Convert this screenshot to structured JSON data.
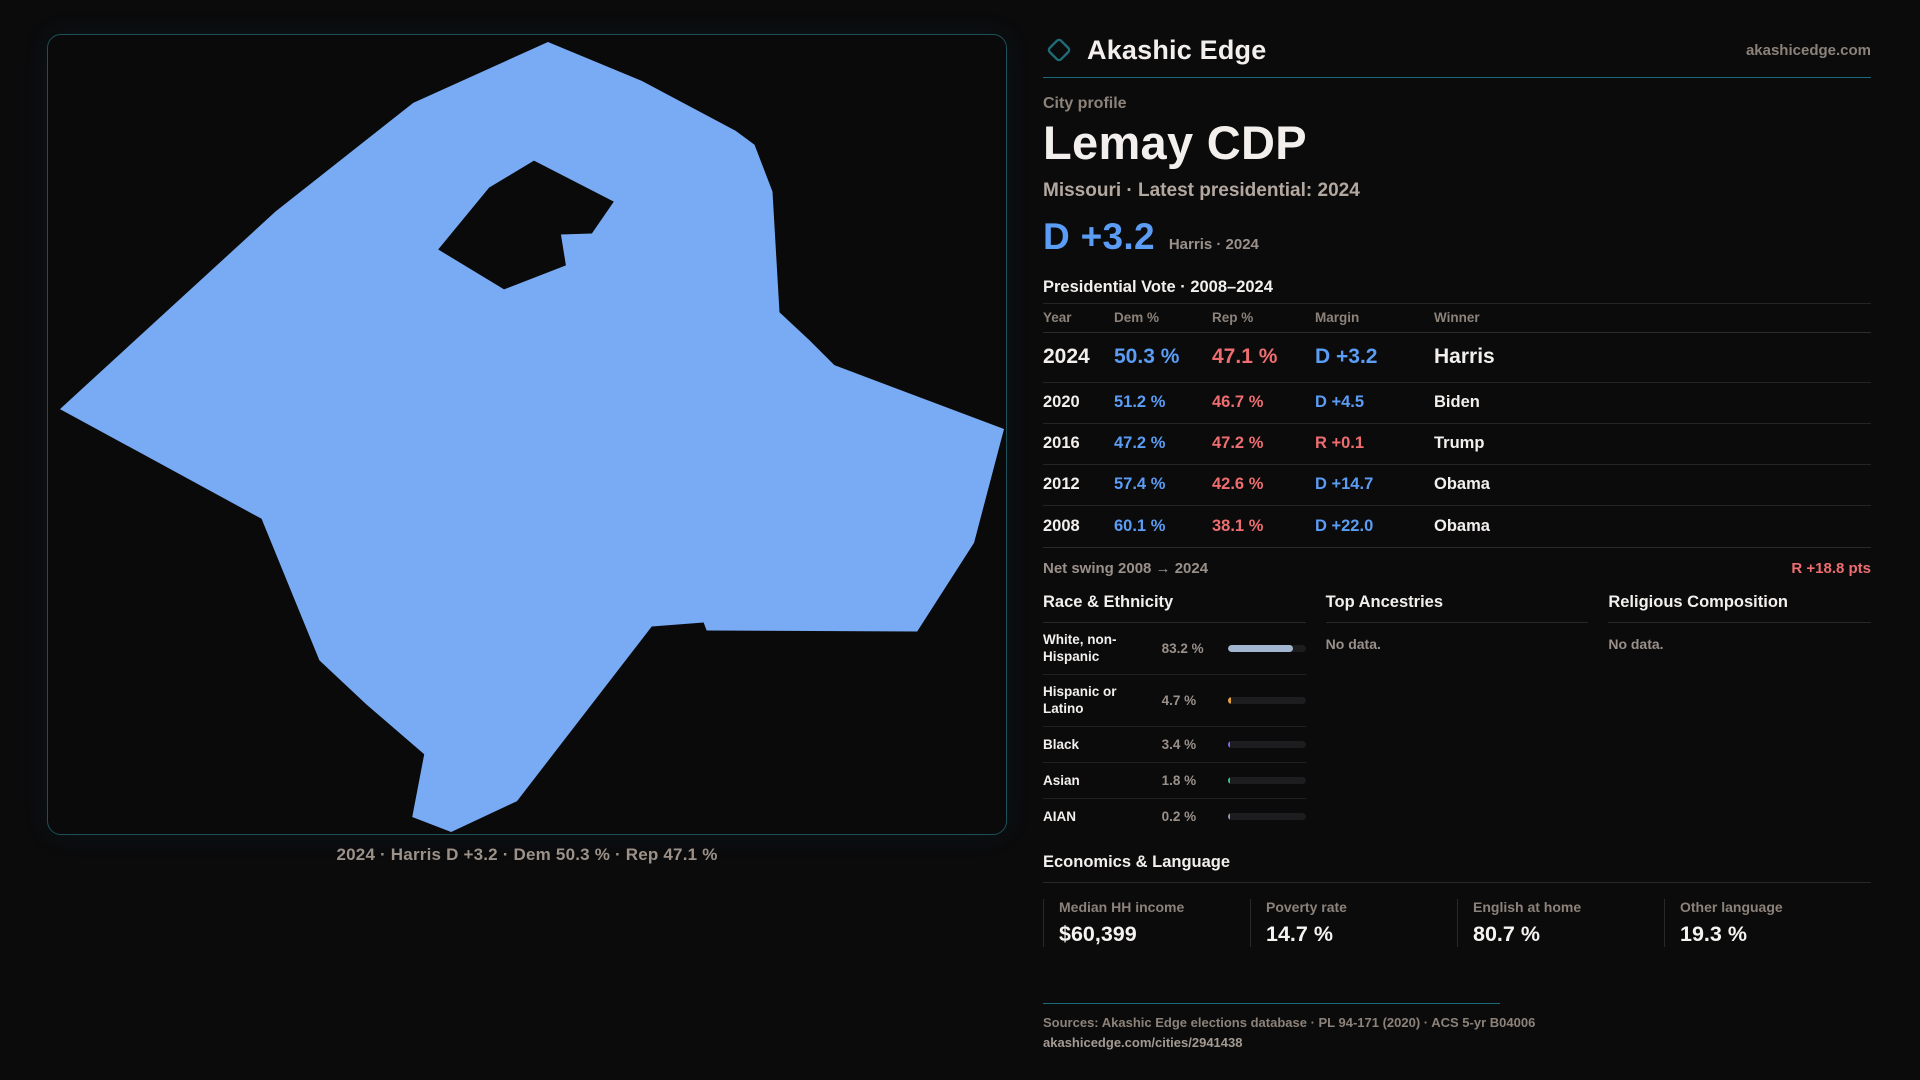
{
  "brand": {
    "name": "Akashic Edge",
    "domain": "akashicedge.com",
    "accent_teal": "#1a6b79"
  },
  "profile": {
    "kicker": "City profile",
    "title": "Lemay CDP",
    "subtitle": "Missouri · Latest presidential: 2024",
    "headline_margin": "D +3.2",
    "headline_context": "Harris · 2024"
  },
  "map": {
    "caption": "2024 · Harris D +3.2 · Dem 50.3 % · Rep 47.1 %",
    "shape_color": "#79abf5"
  },
  "elections": {
    "section_title": "Presidential Vote · 2008–2024",
    "columns": {
      "year": "Year",
      "dem": "Dem %",
      "rep": "Rep %",
      "margin": "Margin",
      "winner": "Winner"
    },
    "rows": [
      {
        "year": "2024",
        "dem": "50.3 %",
        "rep": "47.1 %",
        "margin": "D +3.2",
        "winner": "Harris",
        "party": "D"
      },
      {
        "year": "2020",
        "dem": "51.2 %",
        "rep": "46.7 %",
        "margin": "D +4.5",
        "winner": "Biden",
        "party": "D"
      },
      {
        "year": "2016",
        "dem": "47.2 %",
        "rep": "47.2 %",
        "margin": "R +0.1",
        "winner": "Trump",
        "party": "R"
      },
      {
        "year": "2012",
        "dem": "57.4 %",
        "rep": "42.6 %",
        "margin": "D +14.7",
        "winner": "Obama",
        "party": "D"
      },
      {
        "year": "2008",
        "dem": "60.1 %",
        "rep": "38.1 %",
        "margin": "D +22.0",
        "winner": "Obama",
        "party": "D"
      }
    ],
    "net_swing_label": "Net swing 2008 → 2024",
    "net_swing_value": "R +18.8 pts"
  },
  "race": {
    "title": "Race & Ethnicity",
    "rows": [
      {
        "label": "White, non-Hispanic",
        "value": "83.2 %",
        "pct": 83.2,
        "color": "#a3b6cf"
      },
      {
        "label": "Hispanic or Latino",
        "value": "4.7 %",
        "pct": 4.7,
        "color": "#e6a13c"
      },
      {
        "label": "Black",
        "value": "3.4 %",
        "pct": 3.4,
        "color": "#8266ef"
      },
      {
        "label": "Asian",
        "value": "1.8 %",
        "pct": 1.8,
        "color": "#31c98a"
      },
      {
        "label": "AIAN",
        "value": "0.2 %",
        "pct": 0.2,
        "color": "#8d99a8"
      }
    ]
  },
  "ancestries": {
    "title": "Top Ancestries",
    "empty": "No data."
  },
  "religion": {
    "title": "Religious Composition",
    "empty": "No data."
  },
  "economics": {
    "title": "Economics & Language",
    "stats": [
      {
        "label": "Median HH income",
        "value": "$60,399"
      },
      {
        "label": "Poverty rate",
        "value": "14.7 %"
      },
      {
        "label": "English at home",
        "value": "80.7 %"
      },
      {
        "label": "Other language",
        "value": "19.3 %"
      }
    ]
  },
  "footer": {
    "sources": "Sources: Akashic Edge elections database · PL 94-171 (2020) · ACS 5-yr B04006",
    "permalink": "akashicedge.com/cities/2941438"
  },
  "colors": {
    "dem_blue": "#5b9cf4",
    "rep_red": "#ee6d70"
  }
}
